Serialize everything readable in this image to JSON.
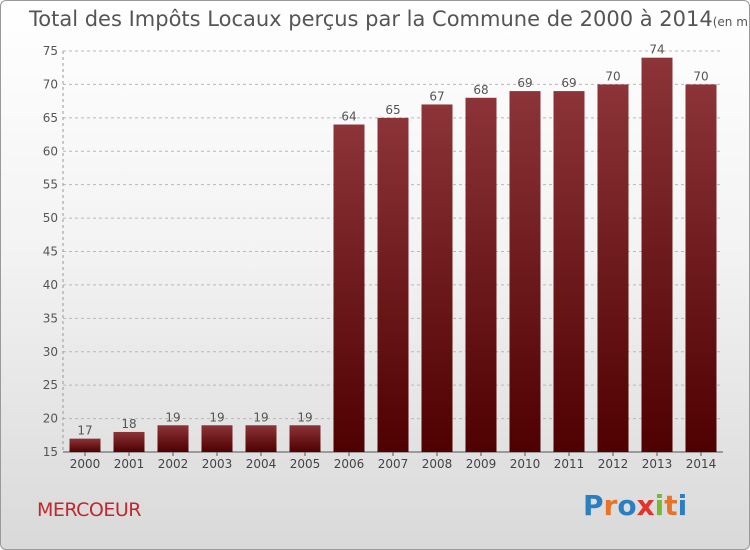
{
  "chart_data": {
    "type": "bar",
    "title": "Total des Impôts Locaux perçus par la Commune de 2000 à 2014",
    "unit": "(en milliers d'€)",
    "categories": [
      "2000",
      "2001",
      "2002",
      "2003",
      "2004",
      "2005",
      "2006",
      "2007",
      "2008",
      "2009",
      "2010",
      "2011",
      "2012",
      "2013",
      "2014"
    ],
    "values": [
      17,
      18,
      19,
      19,
      19,
      19,
      64,
      65,
      67,
      68,
      69,
      69,
      70,
      74,
      70
    ],
    "ylim": [
      15,
      75
    ],
    "yticks": [
      15,
      20,
      25,
      30,
      35,
      40,
      45,
      50,
      55,
      60,
      65,
      70,
      75
    ],
    "xlabel": "",
    "ylabel": "",
    "bar_color": "#7a1e22",
    "grid": true
  },
  "commune": "MERCOEUR",
  "brand": {
    "letters": [
      "P",
      "r",
      "o",
      "x",
      "i",
      "t",
      "i"
    ],
    "colors": [
      "#2b7fc1",
      "#e8742a",
      "#2b7fc1",
      "#e2342d",
      "#7ab833",
      "#e8742a",
      "#2b7fc1"
    ]
  }
}
